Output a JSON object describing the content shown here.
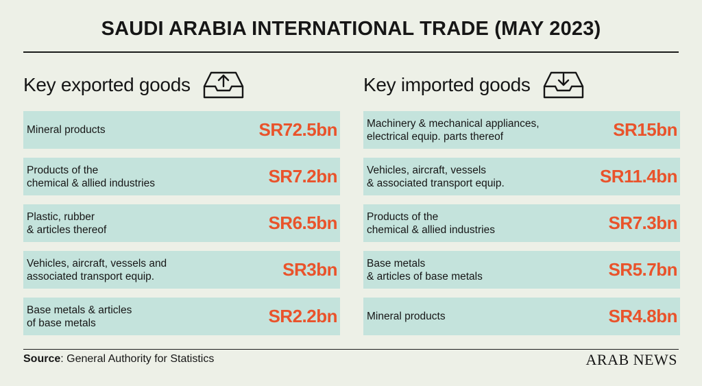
{
  "title": "SAUDI ARABIA INTERNATIONAL TRADE (MAY 2023)",
  "exports": {
    "heading": "Key exported goods",
    "icon": "tray-upload-icon"
  },
  "imports": {
    "heading": "Key imported goods",
    "icon": "tray-download-icon"
  },
  "source": {
    "label": "Source",
    "text": ": General Authority for Statistics"
  },
  "brand": "ARAB NEWS",
  "colors": {
    "background": "#edf0e7",
    "row_fill": "#c4e3dc",
    "value_text": "#e9532b"
  },
  "chart_data": [
    {
      "type": "table",
      "title": "Key exported goods",
      "rows": [
        {
          "category": "Mineral products",
          "display": "SR72.5bn",
          "value": 72.5
        },
        {
          "category": "Products of the\nchemical & allied industries",
          "display": "SR7.2bn",
          "value": 7.2
        },
        {
          "category": "Plastic, rubber\n& articles thereof",
          "display": "SR6.5bn",
          "value": 6.5
        },
        {
          "category": "Vehicles, aircraft, vessels and\nassociated transport equip.",
          "display": "SR3bn",
          "value": 3
        },
        {
          "category": "Base metals & articles\nof base metals",
          "display": "SR2.2bn",
          "value": 2.2
        }
      ]
    },
    {
      "type": "table",
      "title": "Key imported goods",
      "rows": [
        {
          "category": "Machinery & mechanical appliances,\nelectrical equip. parts thereof",
          "display": "SR15bn",
          "value": 15
        },
        {
          "category": "Vehicles, aircraft, vessels\n& associated transport equip.",
          "display": "SR11.4bn",
          "value": 11.4
        },
        {
          "category": "Products of the\nchemical & allied industries",
          "display": "SR7.3bn",
          "value": 7.3
        },
        {
          "category": "Base metals\n& articles of base metals",
          "display": "SR5.7bn",
          "value": 5.7
        },
        {
          "category": "Mineral products",
          "display": "SR4.8bn",
          "value": 4.8
        }
      ]
    }
  ]
}
